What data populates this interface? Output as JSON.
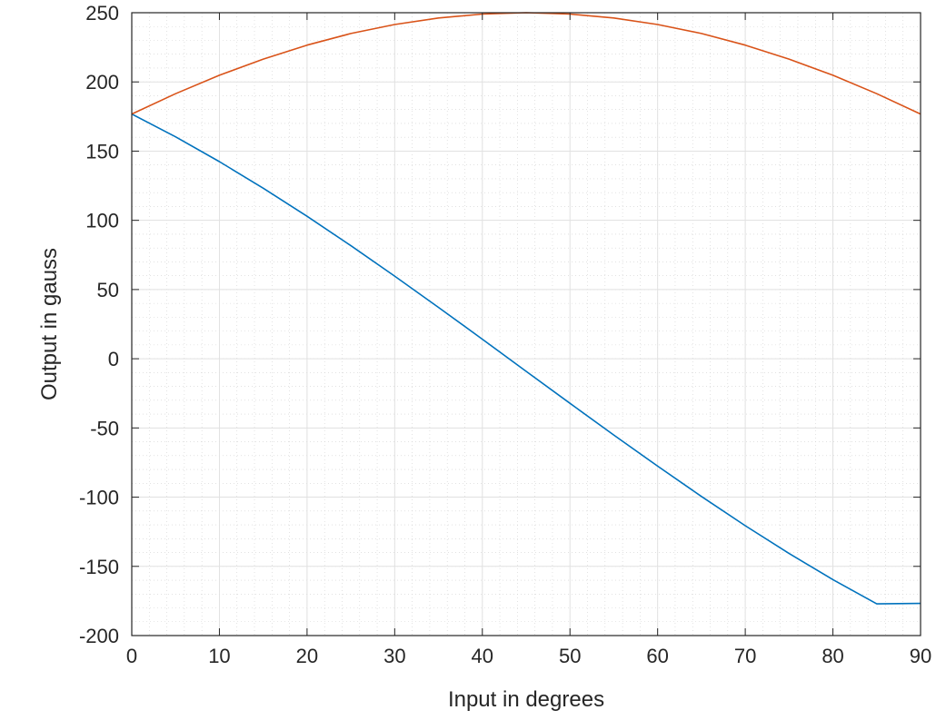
{
  "chart_data": {
    "type": "line",
    "title": "",
    "xlabel": "Input in degrees",
    "ylabel": "Output in gauss",
    "xlim": [
      0,
      90
    ],
    "ylim": [
      -200,
      250
    ],
    "xticks": [
      0,
      10,
      20,
      30,
      40,
      50,
      60,
      70,
      80,
      90
    ],
    "yticks": [
      -200,
      -150,
      -100,
      -50,
      0,
      50,
      100,
      150,
      200,
      250
    ],
    "grid": true,
    "minor_grid": true,
    "legend": "none",
    "series": [
      {
        "color": "#0072BD",
        "x": [
          0,
          5,
          10,
          15,
          20,
          25,
          30,
          35,
          40,
          45,
          50,
          55,
          60,
          65,
          70,
          75,
          80,
          85,
          90
        ],
        "y": [
          176.8,
          160.3,
          142.4,
          123.2,
          102.9,
          81.7,
          59.7,
          37.1,
          14.1,
          -9.1,
          -32.2,
          -55.1,
          -77.6,
          -99.5,
          -120.6,
          -140.7,
          -159.6,
          -177.1,
          -176.8
        ]
      },
      {
        "color": "#D95319",
        "x": [
          0,
          5,
          10,
          15,
          20,
          25,
          30,
          35,
          40,
          45,
          50,
          55,
          60,
          65,
          70,
          75,
          80,
          85,
          90
        ],
        "y": [
          176.8,
          191.5,
          204.8,
          216.5,
          226.6,
          235.0,
          241.5,
          246.2,
          249.0,
          250.0,
          249.0,
          246.2,
          241.5,
          235.0,
          226.6,
          216.5,
          204.8,
          191.5,
          176.8
        ]
      }
    ]
  }
}
